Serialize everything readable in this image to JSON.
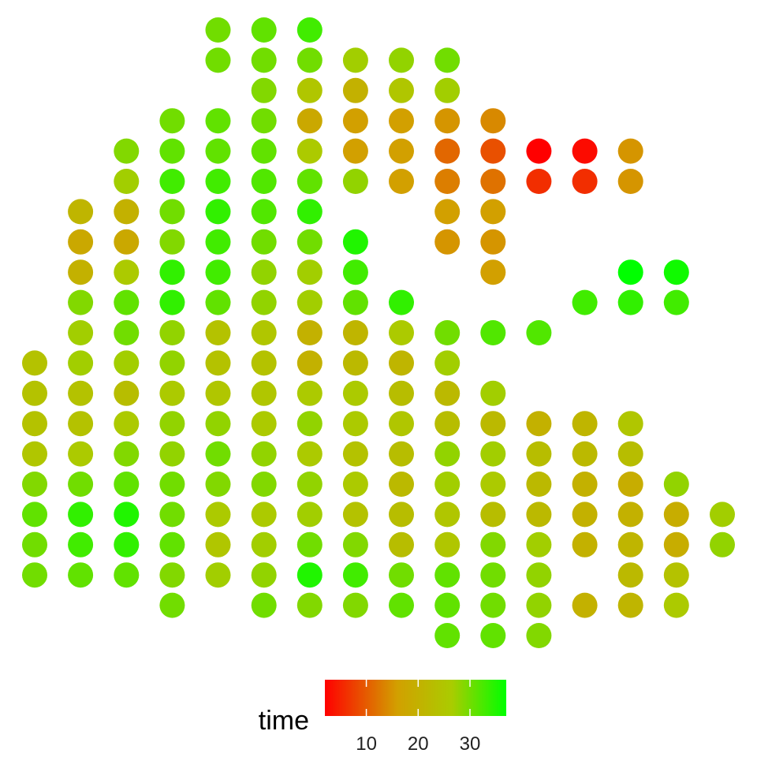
{
  "chart_data": {
    "type": "scatter",
    "title": "",
    "xlabel": "",
    "ylabel": "",
    "grid": false,
    "xlim": [
      -0.6,
      15.6
    ],
    "ylim": [
      -0.6,
      20.6
    ],
    "color_scale": {
      "variable": "time",
      "domain": [
        2,
        37
      ],
      "colors": [
        "#ff0000",
        "#d2a000",
        "#aacc00",
        "#00ff00"
      ],
      "stops": [
        0,
        0.4,
        0.7,
        1
      ],
      "ticks": [
        10,
        20,
        30
      ],
      "tick_labels": [
        "10",
        "20",
        "30"
      ]
    },
    "legend": {
      "title": "time",
      "position": "bottom"
    },
    "points": [
      [
        4,
        20,
        30
      ],
      [
        5,
        20,
        31
      ],
      [
        6,
        20,
        33
      ],
      [
        4,
        19,
        30
      ],
      [
        5,
        19,
        30
      ],
      [
        6,
        19,
        30
      ],
      [
        7,
        19,
        27
      ],
      [
        8,
        19,
        28
      ],
      [
        9,
        19,
        30
      ],
      [
        5,
        18,
        29
      ],
      [
        6,
        18,
        25
      ],
      [
        7,
        18,
        20
      ],
      [
        8,
        18,
        25
      ],
      [
        9,
        18,
        27
      ],
      [
        3,
        17,
        30
      ],
      [
        4,
        17,
        31
      ],
      [
        5,
        17,
        30
      ],
      [
        6,
        17,
        18
      ],
      [
        7,
        17,
        16
      ],
      [
        8,
        17,
        16
      ],
      [
        9,
        17,
        15
      ],
      [
        10,
        17,
        14
      ],
      [
        2,
        16,
        29
      ],
      [
        3,
        16,
        31
      ],
      [
        4,
        16,
        31
      ],
      [
        5,
        16,
        31
      ],
      [
        6,
        16,
        26
      ],
      [
        7,
        16,
        16
      ],
      [
        8,
        16,
        16
      ],
      [
        9,
        16,
        11
      ],
      [
        10,
        16,
        9
      ],
      [
        11,
        16,
        2
      ],
      [
        12,
        16,
        3
      ],
      [
        13,
        16,
        15
      ],
      [
        2,
        15,
        27
      ],
      [
        3,
        15,
        33
      ],
      [
        4,
        15,
        33
      ],
      [
        5,
        15,
        32
      ],
      [
        6,
        15,
        31
      ],
      [
        7,
        15,
        28
      ],
      [
        8,
        15,
        16
      ],
      [
        9,
        15,
        13
      ],
      [
        10,
        15,
        12
      ],
      [
        11,
        15,
        6
      ],
      [
        12,
        15,
        6
      ],
      [
        13,
        15,
        15
      ],
      [
        1,
        14,
        21
      ],
      [
        2,
        14,
        20
      ],
      [
        3,
        14,
        30
      ],
      [
        4,
        14,
        34
      ],
      [
        5,
        14,
        32
      ],
      [
        6,
        14,
        34
      ],
      [
        9,
        14,
        16
      ],
      [
        10,
        14,
        16
      ],
      [
        1,
        13,
        18
      ],
      [
        2,
        13,
        18
      ],
      [
        3,
        13,
        29
      ],
      [
        4,
        13,
        33
      ],
      [
        5,
        13,
        30
      ],
      [
        6,
        13,
        30
      ],
      [
        7,
        13,
        35
      ],
      [
        9,
        13,
        15
      ],
      [
        10,
        13,
        15
      ],
      [
        1,
        12,
        20
      ],
      [
        2,
        12,
        26
      ],
      [
        3,
        12,
        34
      ],
      [
        4,
        12,
        33
      ],
      [
        5,
        12,
        28
      ],
      [
        6,
        12,
        27
      ],
      [
        7,
        12,
        33
      ],
      [
        10,
        12,
        16
      ],
      [
        13,
        12,
        37
      ],
      [
        14,
        12,
        36
      ],
      [
        1,
        11,
        29
      ],
      [
        2,
        11,
        31
      ],
      [
        3,
        11,
        34
      ],
      [
        4,
        11,
        31
      ],
      [
        5,
        11,
        28
      ],
      [
        6,
        11,
        27
      ],
      [
        7,
        11,
        31
      ],
      [
        8,
        11,
        34
      ],
      [
        12,
        11,
        33
      ],
      [
        13,
        11,
        34
      ],
      [
        14,
        11,
        33
      ],
      [
        1,
        10,
        27
      ],
      [
        2,
        10,
        30
      ],
      [
        3,
        10,
        28
      ],
      [
        4,
        10,
        24
      ],
      [
        5,
        10,
        25
      ],
      [
        6,
        10,
        20
      ],
      [
        7,
        10,
        21
      ],
      [
        8,
        10,
        26
      ],
      [
        9,
        10,
        30
      ],
      [
        10,
        10,
        32
      ],
      [
        11,
        10,
        32
      ],
      [
        0,
        9,
        24
      ],
      [
        1,
        9,
        27
      ],
      [
        2,
        9,
        27
      ],
      [
        3,
        9,
        28
      ],
      [
        4,
        9,
        24
      ],
      [
        5,
        9,
        24
      ],
      [
        6,
        9,
        20
      ],
      [
        7,
        9,
        22
      ],
      [
        8,
        9,
        21
      ],
      [
        9,
        9,
        27
      ],
      [
        0,
        8,
        24
      ],
      [
        1,
        8,
        24
      ],
      [
        2,
        8,
        23
      ],
      [
        3,
        8,
        26
      ],
      [
        4,
        8,
        25
      ],
      [
        5,
        8,
        25
      ],
      [
        6,
        8,
        26
      ],
      [
        7,
        8,
        26
      ],
      [
        8,
        8,
        23
      ],
      [
        9,
        8,
        22
      ],
      [
        10,
        8,
        27
      ],
      [
        0,
        7,
        24
      ],
      [
        1,
        7,
        24
      ],
      [
        2,
        7,
        26
      ],
      [
        3,
        7,
        28
      ],
      [
        4,
        7,
        28
      ],
      [
        5,
        7,
        26
      ],
      [
        6,
        7,
        28
      ],
      [
        7,
        7,
        26
      ],
      [
        8,
        7,
        25
      ],
      [
        9,
        7,
        23
      ],
      [
        10,
        7,
        22
      ],
      [
        11,
        7,
        20
      ],
      [
        12,
        7,
        21
      ],
      [
        13,
        7,
        25
      ],
      [
        0,
        6,
        25
      ],
      [
        1,
        6,
        26
      ],
      [
        2,
        6,
        29
      ],
      [
        3,
        6,
        28
      ],
      [
        4,
        6,
        30
      ],
      [
        5,
        6,
        28
      ],
      [
        6,
        6,
        26
      ],
      [
        7,
        6,
        24
      ],
      [
        8,
        6,
        23
      ],
      [
        9,
        6,
        28
      ],
      [
        10,
        6,
        27
      ],
      [
        11,
        6,
        23
      ],
      [
        12,
        6,
        22
      ],
      [
        13,
        6,
        23
      ],
      [
        0,
        5,
        29
      ],
      [
        1,
        5,
        30
      ],
      [
        2,
        5,
        31
      ],
      [
        3,
        5,
        30
      ],
      [
        4,
        5,
        29
      ],
      [
        5,
        5,
        29
      ],
      [
        6,
        5,
        28
      ],
      [
        7,
        5,
        26
      ],
      [
        8,
        5,
        22
      ],
      [
        9,
        5,
        27
      ],
      [
        10,
        5,
        26
      ],
      [
        11,
        5,
        22
      ],
      [
        12,
        5,
        20
      ],
      [
        13,
        5,
        19
      ],
      [
        14,
        5,
        28
      ],
      [
        0,
        4,
        31
      ],
      [
        1,
        4,
        34
      ],
      [
        2,
        4,
        35
      ],
      [
        3,
        4,
        30
      ],
      [
        4,
        4,
        26
      ],
      [
        5,
        4,
        26
      ],
      [
        6,
        4,
        27
      ],
      [
        7,
        4,
        24
      ],
      [
        8,
        4,
        23
      ],
      [
        9,
        4,
        25
      ],
      [
        10,
        4,
        23
      ],
      [
        11,
        4,
        22
      ],
      [
        12,
        4,
        20
      ],
      [
        13,
        4,
        20
      ],
      [
        14,
        4,
        19
      ],
      [
        15,
        4,
        27
      ],
      [
        0,
        3,
        30
      ],
      [
        1,
        3,
        33
      ],
      [
        2,
        3,
        34
      ],
      [
        3,
        3,
        31
      ],
      [
        4,
        3,
        25
      ],
      [
        5,
        3,
        27
      ],
      [
        6,
        3,
        30
      ],
      [
        7,
        3,
        29
      ],
      [
        8,
        3,
        23
      ],
      [
        9,
        3,
        25
      ],
      [
        10,
        3,
        29
      ],
      [
        11,
        3,
        27
      ],
      [
        12,
        3,
        20
      ],
      [
        13,
        3,
        21
      ],
      [
        14,
        3,
        19
      ],
      [
        15,
        3,
        28
      ],
      [
        0,
        2,
        30
      ],
      [
        1,
        2,
        31
      ],
      [
        2,
        2,
        31
      ],
      [
        3,
        2,
        29
      ],
      [
        4,
        2,
        27
      ],
      [
        5,
        2,
        28
      ],
      [
        6,
        2,
        35
      ],
      [
        7,
        2,
        33
      ],
      [
        8,
        2,
        30
      ],
      [
        9,
        2,
        31
      ],
      [
        10,
        2,
        30
      ],
      [
        11,
        2,
        28
      ],
      [
        13,
        2,
        22
      ],
      [
        14,
        2,
        24
      ],
      [
        3,
        1,
        30
      ],
      [
        5,
        1,
        30
      ],
      [
        6,
        1,
        29
      ],
      [
        7,
        1,
        29
      ],
      [
        8,
        1,
        31
      ],
      [
        9,
        1,
        31
      ],
      [
        10,
        1,
        30
      ],
      [
        11,
        1,
        28
      ],
      [
        12,
        1,
        20
      ],
      [
        13,
        1,
        21
      ],
      [
        14,
        1,
        26
      ],
      [
        9,
        0,
        31
      ],
      [
        10,
        0,
        31
      ],
      [
        11,
        0,
        29
      ]
    ]
  }
}
